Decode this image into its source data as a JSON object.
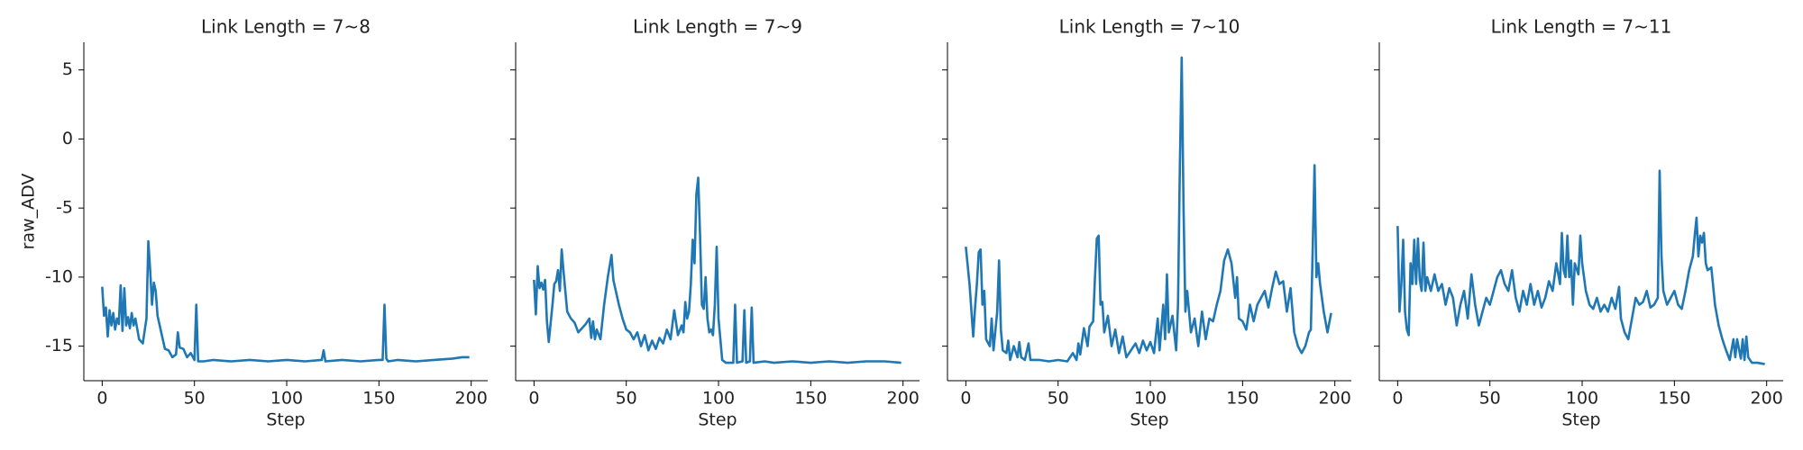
{
  "chart_data": [
    {
      "type": "line",
      "title": "Link Length = 7~8",
      "x_label": "Step",
      "y_label": "raw_ADV",
      "color": "#1f77b4",
      "xlim": [
        -9.95,
        208.95
      ],
      "xticks": [
        0,
        50,
        100,
        150,
        200
      ],
      "ylim": [
        -17.5,
        7
      ],
      "yticks": [
        -15,
        -10,
        -5,
        0,
        5
      ],
      "x": [
        0,
        1,
        2,
        3,
        4,
        5,
        6,
        7,
        8,
        9,
        10,
        11,
        12,
        13,
        14,
        15,
        16,
        17,
        18,
        20,
        22,
        24,
        25,
        26,
        27,
        28,
        29,
        30,
        32,
        34,
        36,
        38,
        40,
        41,
        42,
        44,
        46,
        48,
        50,
        51,
        52,
        55,
        60,
        70,
        80,
        90,
        100,
        110,
        119,
        120,
        121,
        130,
        140,
        150,
        152,
        153,
        154,
        155,
        160,
        170,
        180,
        190,
        195,
        199
      ],
      "values": [
        -10.7,
        -12.8,
        -12.2,
        -14.3,
        -12.4,
        -13.5,
        -12.6,
        -13.8,
        -13.0,
        -13.4,
        -10.6,
        -13.9,
        -10.8,
        -13.5,
        -12.9,
        -13.7,
        -12.6,
        -13.5,
        -13.0,
        -14.5,
        -14.8,
        -13.0,
        -7.4,
        -9.5,
        -12.0,
        -10.4,
        -11.0,
        -12.8,
        -14.0,
        -15.2,
        -15.3,
        -15.8,
        -15.6,
        -14.0,
        -15.1,
        -15.2,
        -15.8,
        -15.5,
        -16.0,
        -12.0,
        -16.1,
        -16.1,
        -16.0,
        -16.1,
        -16.0,
        -16.1,
        -16.0,
        -16.1,
        -16.0,
        -15.3,
        -16.1,
        -16.0,
        -16.1,
        -16.0,
        -16.0,
        -12.0,
        -15.9,
        -16.1,
        -16.0,
        -16.1,
        -16.0,
        -15.9,
        -15.8,
        -15.8
      ]
    },
    {
      "type": "line",
      "title": "Link Length = 7~9",
      "x_label": "Step",
      "color": "#1f77b4",
      "xlim": [
        -9.95,
        208.95
      ],
      "xticks": [
        0,
        50,
        100,
        150,
        200
      ],
      "ylim": [
        -17.5,
        7
      ],
      "x": [
        0,
        1,
        2,
        3,
        4,
        5,
        6,
        7,
        8,
        10,
        11,
        12,
        13,
        14,
        15,
        16,
        18,
        20,
        22,
        24,
        26,
        28,
        30,
        31,
        32,
        33,
        34,
        36,
        38,
        40,
        42,
        43,
        44,
        46,
        48,
        50,
        52,
        54,
        56,
        58,
        60,
        62,
        64,
        66,
        68,
        70,
        72,
        74,
        76,
        78,
        80,
        81,
        82,
        83,
        84,
        85,
        86,
        87,
        88,
        89,
        90,
        91,
        92,
        93,
        94,
        95,
        96,
        97,
        98,
        99,
        100,
        102,
        104,
        108,
        109,
        110,
        113,
        114,
        115,
        117,
        118,
        119,
        125,
        130,
        140,
        150,
        160,
        170,
        180,
        190,
        199
      ],
      "values": [
        -10.2,
        -12.7,
        -9.2,
        -10.8,
        -10.4,
        -10.9,
        -10.2,
        -13.2,
        -14.7,
        -12.0,
        -10.5,
        -10.3,
        -9.5,
        -11.0,
        -8.0,
        -9.6,
        -12.5,
        -13.0,
        -13.3,
        -14.0,
        -13.7,
        -13.4,
        -13.0,
        -14.4,
        -13.2,
        -14.5,
        -13.8,
        -14.5,
        -12.0,
        -10.0,
        -8.4,
        -10.2,
        -10.8,
        -12.0,
        -13.0,
        -13.8,
        -14.0,
        -14.5,
        -14.0,
        -15.0,
        -14.2,
        -15.3,
        -14.6,
        -15.2,
        -14.4,
        -14.8,
        -13.8,
        -14.5,
        -12.4,
        -14.2,
        -13.5,
        -14.0,
        -11.8,
        -13.0,
        -12.5,
        -10.5,
        -7.3,
        -9.0,
        -4.0,
        -2.8,
        -7.0,
        -12.0,
        -12.3,
        -10.0,
        -13.0,
        -14.0,
        -13.8,
        -14.2,
        -12.0,
        -7.8,
        -13.0,
        -16.0,
        -16.2,
        -16.2,
        -12.0,
        -16.2,
        -16.1,
        -12.4,
        -16.2,
        -16.1,
        -12.2,
        -16.2,
        -16.1,
        -16.2,
        -16.1,
        -16.2,
        -16.1,
        -16.2,
        -16.1,
        -16.1,
        -16.2
      ]
    },
    {
      "type": "line",
      "title": "Link Length = 7~10",
      "x_label": "Step",
      "color": "#1f77b4",
      "xlim": [
        -9.95,
        208.95
      ],
      "xticks": [
        0,
        50,
        100,
        150,
        200
      ],
      "ylim": [
        -17.5,
        7
      ],
      "x": [
        0,
        2,
        4,
        5,
        6,
        7,
        8,
        9,
        10,
        11,
        13,
        14,
        15,
        17,
        18,
        19,
        20,
        22,
        23,
        24,
        26,
        28,
        29,
        30,
        32,
        34,
        35,
        40,
        45,
        50,
        55,
        58,
        60,
        61,
        62,
        64,
        66,
        67,
        69,
        70,
        71,
        72,
        73,
        74,
        75,
        77,
        79,
        81,
        83,
        85,
        87,
        90,
        92,
        94,
        96,
        98,
        100,
        102,
        104,
        105,
        107,
        108,
        109,
        110,
        112,
        114,
        115,
        116,
        117,
        118,
        119,
        120,
        122,
        124,
        126,
        128,
        130,
        132,
        134,
        136,
        138,
        140,
        142,
        144,
        146,
        147,
        148,
        150,
        152,
        154,
        156,
        158,
        160,
        162,
        164,
        166,
        168,
        170,
        172,
        174,
        176,
        178,
        180,
        182,
        184,
        186,
        187,
        188,
        189,
        190,
        191,
        192,
        194,
        196,
        198
      ],
      "values": [
        -7.8,
        -10.5,
        -14.3,
        -12.2,
        -10.5,
        -8.2,
        -8.0,
        -12.0,
        -11.0,
        -14.5,
        -15.0,
        -13.0,
        -15.3,
        -12.5,
        -8.8,
        -13.8,
        -15.3,
        -15.5,
        -14.6,
        -16.0,
        -15.0,
        -15.8,
        -14.7,
        -15.8,
        -16.0,
        -14.8,
        -16.0,
        -16.0,
        -16.1,
        -16.0,
        -16.1,
        -15.5,
        -16.0,
        -14.8,
        -15.6,
        -13.7,
        -15.0,
        -13.6,
        -13.2,
        -10.0,
        -7.2,
        -7.0,
        -12.0,
        -11.8,
        -14.0,
        -12.8,
        -15.0,
        -13.8,
        -15.5,
        -14.3,
        -15.8,
        -15.2,
        -14.8,
        -15.5,
        -14.6,
        -15.3,
        -14.7,
        -15.5,
        -13.0,
        -15.3,
        -12.0,
        -14.5,
        -9.8,
        -14.0,
        -12.8,
        -15.3,
        -12.0,
        -2.0,
        5.9,
        -5.0,
        -12.5,
        -11.0,
        -14.0,
        -13.0,
        -15.0,
        -12.5,
        -14.5,
        -13.0,
        -13.2,
        -12.0,
        -11.0,
        -8.8,
        -8.0,
        -9.0,
        -11.5,
        -10.0,
        -13.0,
        -13.2,
        -13.8,
        -12.0,
        -13.2,
        -12.0,
        -11.5,
        -11.0,
        -12.2,
        -10.8,
        -9.6,
        -10.5,
        -10.3,
        -12.5,
        -10.8,
        -14.0,
        -15.0,
        -15.5,
        -15.0,
        -14.0,
        -13.8,
        -8.0,
        -1.9,
        -10.0,
        -9.0,
        -10.5,
        -12.5,
        -14.0,
        -12.6
      ]
    },
    {
      "type": "line",
      "title": "Link Length = 7~11",
      "x_label": "Step",
      "color": "#1f77b4",
      "xlim": [
        -9.95,
        208.95
      ],
      "xticks": [
        0,
        50,
        100,
        150,
        200
      ],
      "ylim": [
        -17.5,
        7
      ],
      "x": [
        0,
        1,
        2,
        3,
        4,
        5,
        6,
        7,
        8,
        9,
        10,
        11,
        12,
        13,
        14,
        15,
        16,
        18,
        20,
        22,
        24,
        26,
        28,
        30,
        32,
        34,
        36,
        38,
        40,
        42,
        44,
        46,
        48,
        50,
        52,
        54,
        56,
        58,
        60,
        62,
        64,
        66,
        68,
        70,
        72,
        74,
        76,
        78,
        80,
        82,
        84,
        86,
        88,
        89,
        90,
        91,
        92,
        93,
        94,
        95,
        96,
        98,
        99,
        100,
        102,
        104,
        106,
        108,
        110,
        112,
        114,
        116,
        118,
        120,
        121,
        123,
        125,
        127,
        129,
        131,
        133,
        135,
        137,
        139,
        141,
        142,
        143,
        144,
        146,
        148,
        150,
        152,
        154,
        156,
        158,
        160,
        161,
        162,
        163,
        164,
        165,
        166,
        167,
        168,
        170,
        172,
        174,
        176,
        178,
        180,
        182,
        183,
        184,
        186,
        187,
        188,
        189,
        190,
        192,
        195,
        199
      ],
      "values": [
        -6.3,
        -12.5,
        -10.5,
        -7.3,
        -12.5,
        -13.8,
        -14.2,
        -9.0,
        -10.5,
        -7.3,
        -10.5,
        -7.2,
        -10.2,
        -11.0,
        -7.5,
        -11.0,
        -10.0,
        -11.0,
        -9.8,
        -11.0,
        -10.5,
        -12.0,
        -10.8,
        -11.5,
        -13.5,
        -12.0,
        -11.0,
        -13.0,
        -9.8,
        -12.0,
        -13.5,
        -12.5,
        -11.5,
        -12.0,
        -11.0,
        -10.0,
        -9.5,
        -10.5,
        -11.0,
        -9.5,
        -11.5,
        -12.5,
        -11.0,
        -12.0,
        -10.5,
        -12.0,
        -11.0,
        -12.2,
        -11.5,
        -10.3,
        -11.0,
        -9.0,
        -10.5,
        -6.8,
        -9.5,
        -10.0,
        -7.0,
        -10.0,
        -8.8,
        -12.0,
        -9.0,
        -9.8,
        -7.0,
        -9.0,
        -11.0,
        -12.0,
        -12.3,
        -11.5,
        -12.5,
        -12.0,
        -12.5,
        -11.5,
        -12.3,
        -10.7,
        -13.0,
        -14.0,
        -14.5,
        -13.0,
        -11.5,
        -12.0,
        -11.8,
        -11.0,
        -12.2,
        -12.0,
        -11.5,
        -2.3,
        -8.5,
        -11.0,
        -12.0,
        -11.5,
        -11.0,
        -12.0,
        -12.3,
        -11.0,
        -9.5,
        -8.5,
        -7.0,
        -5.7,
        -8.5,
        -7.0,
        -7.5,
        -6.8,
        -9.0,
        -9.5,
        -9.3,
        -12.0,
        -13.5,
        -14.5,
        -15.3,
        -16.0,
        -14.5,
        -15.8,
        -14.5,
        -15.9,
        -14.5,
        -16.0,
        -14.3,
        -15.8,
        -16.2,
        -16.2,
        -16.3
      ]
    }
  ]
}
